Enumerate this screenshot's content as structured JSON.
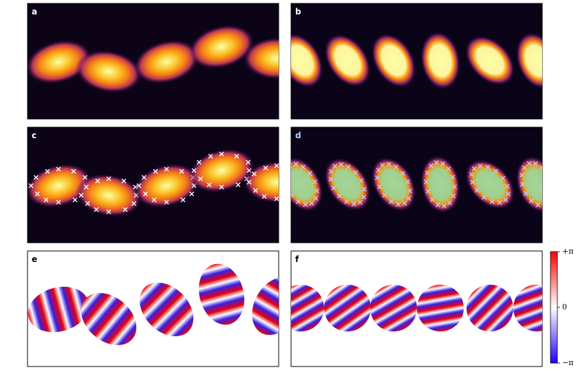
{
  "panels": [
    {
      "label": "a"
    },
    {
      "label": "b"
    },
    {
      "label": "c"
    },
    {
      "label": "d"
    },
    {
      "label": "e"
    },
    {
      "label": "f"
    }
  ],
  "colorbar": {
    "clim": [
      -3.14159,
      3.14159
    ],
    "ticks": [
      {
        "value": 3.14159,
        "label": "+π"
      },
      0,
      {
        "value": -3.14159,
        "label": "−π"
      }
    ]
  }
}
